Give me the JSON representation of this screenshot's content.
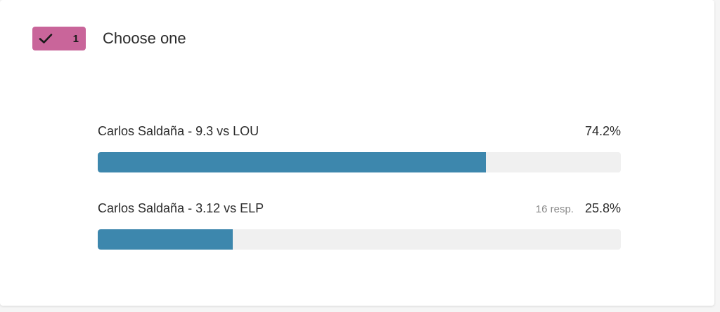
{
  "colors": {
    "badge_bg": "#c9659a",
    "bar_fill": "#3d87ad",
    "bar_track": "#f0f0f0"
  },
  "question": {
    "badge_icon": "check-icon",
    "number": "1",
    "title": "Choose one"
  },
  "options": [
    {
      "label": "Carlos Saldaña - 9.3 vs LOU",
      "responses": "",
      "percent_label": "74.2%",
      "percent": 74.2
    },
    {
      "label": "Carlos Saldaña - 3.12 vs ELP",
      "responses": "16 resp.",
      "percent_label": "25.8%",
      "percent": 25.8
    }
  ]
}
